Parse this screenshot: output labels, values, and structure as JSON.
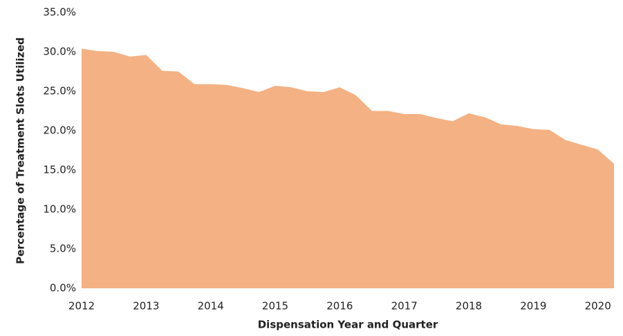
{
  "chart_data": {
    "type": "area",
    "x_label": "Dispensation Year and Quarter",
    "y_label": "Percentage of Treatment Slots  Utilized",
    "categories": [
      "2012",
      null,
      null,
      null,
      "2013",
      null,
      null,
      null,
      "2014",
      null,
      null,
      null,
      "2015",
      null,
      null,
      null,
      "2016",
      null,
      null,
      null,
      "2017",
      null,
      null,
      null,
      "2018",
      null,
      null,
      null,
      "2019",
      null,
      null,
      null,
      "2020",
      null
    ],
    "values": [
      30.4,
      30.1,
      30.0,
      29.4,
      29.6,
      27.6,
      27.5,
      25.9,
      25.9,
      25.8,
      25.4,
      24.9,
      25.7,
      25.5,
      25.0,
      24.9,
      25.5,
      24.5,
      22.5,
      22.5,
      22.1,
      22.1,
      21.6,
      21.2,
      22.2,
      21.7,
      20.8,
      20.6,
      20.2,
      20.1,
      18.8,
      18.2,
      17.6,
      15.8
    ],
    "color": "#f4b183",
    "ylim": [
      0,
      35
    ],
    "yticks": [
      {
        "value": 0,
        "label": "0.0%"
      },
      {
        "value": 5,
        "label": "5.0%"
      },
      {
        "value": 10,
        "label": "10.0%"
      },
      {
        "value": 15,
        "label": "15.0%"
      },
      {
        "value": 20,
        "label": "20.0%"
      },
      {
        "value": 25,
        "label": "25.0%"
      },
      {
        "value": 30,
        "label": "30.0%"
      },
      {
        "value": 35,
        "label": "35.0%"
      }
    ],
    "grid": false
  }
}
